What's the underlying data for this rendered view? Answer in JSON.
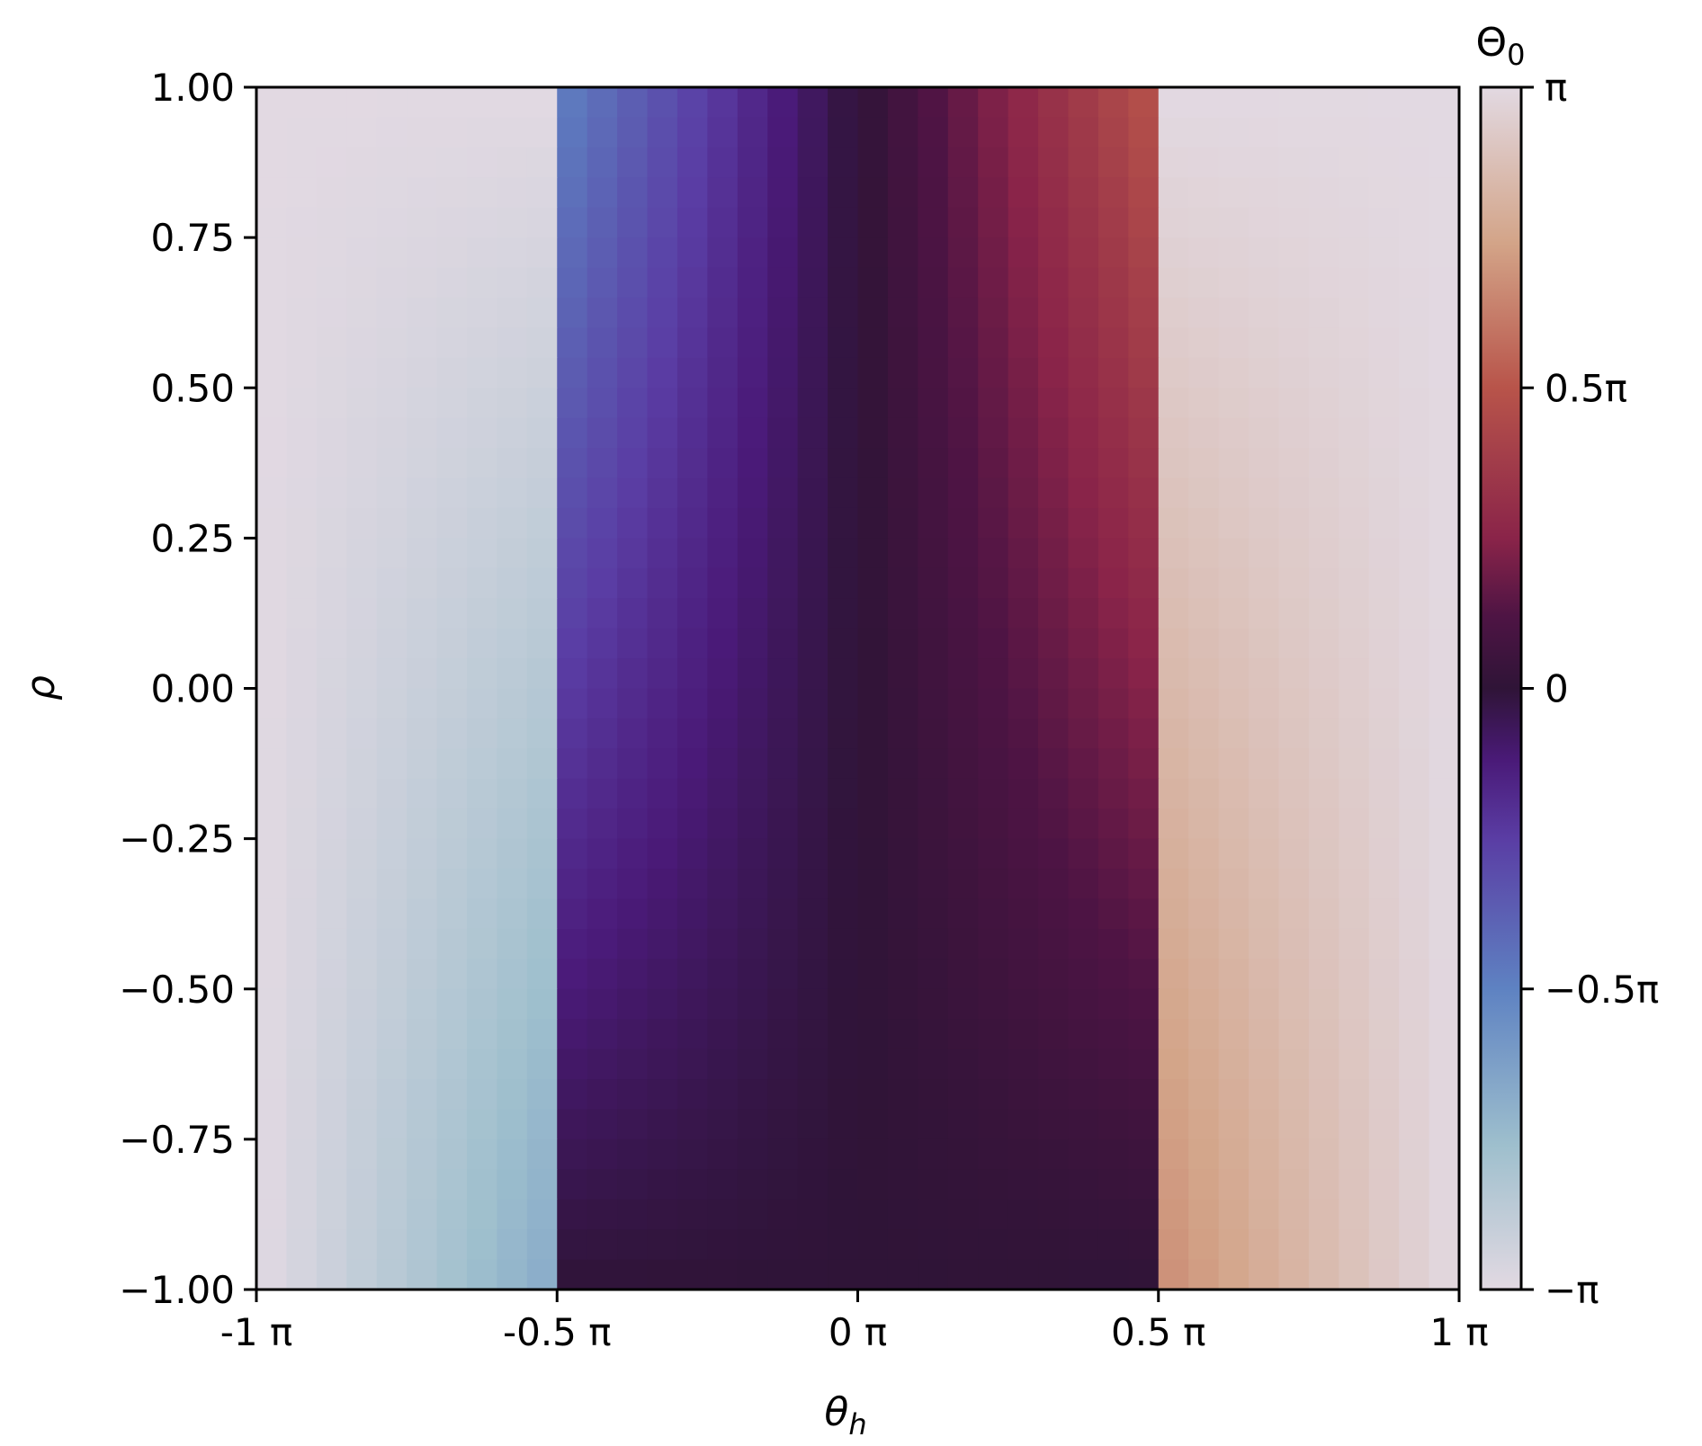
{
  "chart_data": {
    "type": "heatmap",
    "title": "",
    "xlabel": "θ",
    "xlabel_sub": "h",
    "ylabel": "ρ",
    "xlim": [
      -1,
      1
    ],
    "ylim": [
      -1,
      1
    ],
    "x_unit": "π",
    "x_ticks": [
      {
        "value": -1,
        "label": "-1 π"
      },
      {
        "value": -0.5,
        "label": "-0.5 π"
      },
      {
        "value": 0,
        "label": "0 π"
      },
      {
        "value": 0.5,
        "label": "0.5 π"
      },
      {
        "value": 1,
        "label": "1 π"
      }
    ],
    "y_ticks": [
      {
        "value": 1.0,
        "label": "1.00"
      },
      {
        "value": 0.75,
        "label": "0.75"
      },
      {
        "value": 0.5,
        "label": "0.50"
      },
      {
        "value": 0.25,
        "label": "0.25"
      },
      {
        "value": 0.0,
        "label": "0.00"
      },
      {
        "value": -0.25,
        "label": "−0.25"
      },
      {
        "value": -0.5,
        "label": "−0.50"
      },
      {
        "value": -0.75,
        "label": "−0.75"
      },
      {
        "value": -1.0,
        "label": "−1.00"
      }
    ],
    "grid": false,
    "colormap": "twilight_shifted",
    "colorbar": {
      "title": "Θ",
      "title_sub": "0",
      "range": [
        -1,
        1
      ],
      "unit": "π",
      "ticks": [
        {
          "value": 1,
          "label": "π"
        },
        {
          "value": 0.5,
          "label": "0.5π"
        },
        {
          "value": 0,
          "label": "0"
        },
        {
          "value": -0.5,
          "label": "−0.5π"
        },
        {
          "value": -1,
          "label": "−π"
        }
      ],
      "colors": [
        {
          "t": 0.0,
          "hex": "#e2d9e2"
        },
        {
          "t": 0.12,
          "hex": "#9ebfcd"
        },
        {
          "t": 0.25,
          "hex": "#5e82c2"
        },
        {
          "t": 0.375,
          "hex": "#5a3da4"
        },
        {
          "t": 0.44,
          "hex": "#4a1a78"
        },
        {
          "t": 0.5,
          "hex": "#2f1437"
        },
        {
          "t": 0.56,
          "hex": "#4e1444"
        },
        {
          "t": 0.625,
          "hex": "#8a2449"
        },
        {
          "t": 0.75,
          "hex": "#b8544a"
        },
        {
          "t": 0.87,
          "hex": "#d3a488"
        },
        {
          "t": 1.0,
          "hex": "#e2d9e2"
        }
      ]
    },
    "grid_size": {
      "nx": 40,
      "ny": 40
    },
    "phase_model": "Θ0 = θh·(1+ρ)/2 for |θh| ≤ 0.5π; Θ0 ≈ ±(π − (π − |θh|)(1−ρ)/3) for |θh| > 0.5π; wrapped to (−π, π]"
  }
}
